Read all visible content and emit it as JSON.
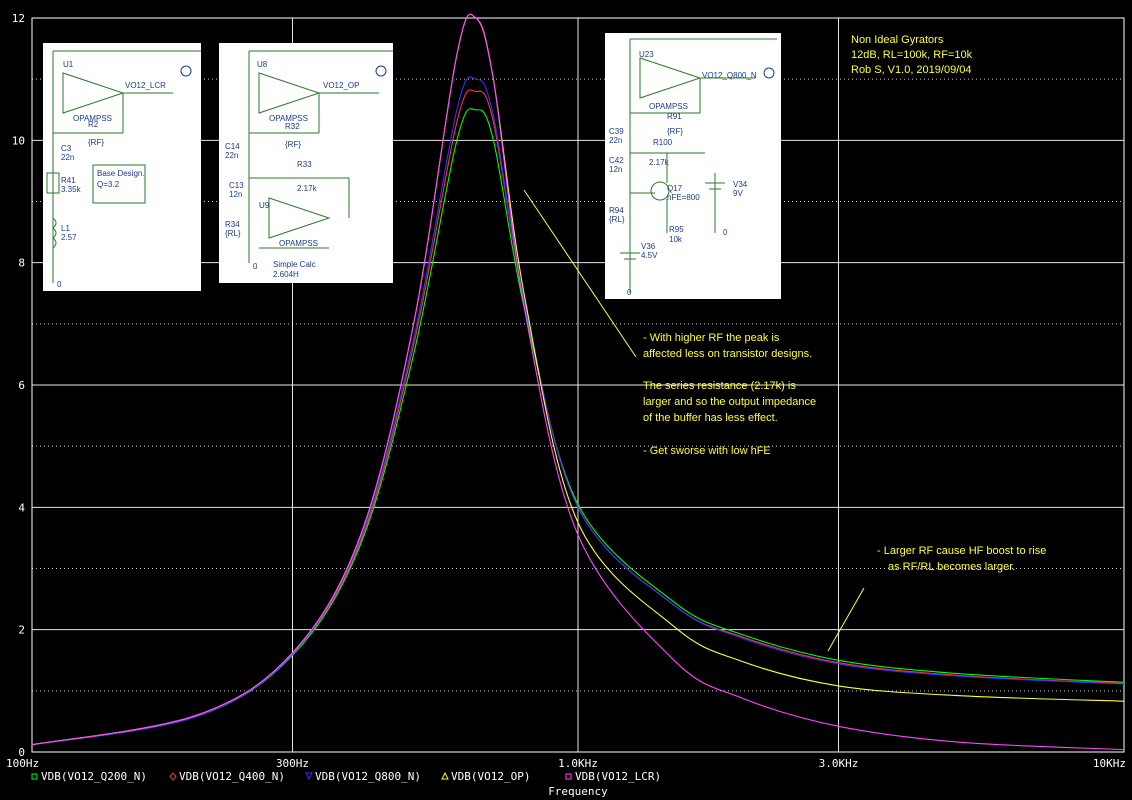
{
  "chart_data": {
    "type": "line",
    "x_scale": "log",
    "xlim": [
      100,
      10000
    ],
    "ylim": [
      0,
      12
    ],
    "grid": true,
    "x_ticks": [
      {
        "v": 100,
        "label": "100Hz"
      },
      {
        "v": 300,
        "label": "300Hz"
      },
      {
        "v": 1000,
        "label": "1.0KHz"
      },
      {
        "v": 3000,
        "label": "3.0KHz"
      },
      {
        "v": 10000,
        "label": "10KHz"
      }
    ],
    "y_ticks": [
      {
        "v": 0,
        "label": "0"
      },
      {
        "v": 2,
        "label": "2"
      },
      {
        "v": 4,
        "label": "4"
      },
      {
        "v": 6,
        "label": "6"
      },
      {
        "v": 8,
        "label": "8"
      },
      {
        "v": 10,
        "label": "10"
      },
      {
        "v": 12,
        "label": "12"
      }
    ],
    "xlabel": "Frequency",
    "x": [
      100,
      200,
      300,
      400,
      500,
      600,
      650,
      700,
      800,
      1000,
      1500,
      2000,
      3000,
      5000,
      10000
    ],
    "series": [
      {
        "name": "VDB(VO12_Q200_N)",
        "color": "#00ff00",
        "values": [
          0.12,
          0.58,
          1.58,
          3.4,
          6.5,
          10.0,
          10.5,
          10.0,
          7.2,
          4.05,
          2.45,
          1.92,
          1.5,
          1.28,
          1.14
        ]
      },
      {
        "name": "VDB(VO12_Q400_N)",
        "color": "#ff3333",
        "values": [
          0.12,
          0.58,
          1.6,
          3.45,
          6.65,
          10.3,
          10.8,
          10.3,
          7.3,
          4.0,
          2.4,
          1.88,
          1.46,
          1.25,
          1.12
        ]
      },
      {
        "name": "VDB(VO12_Q800_N)",
        "color": "#3333ff",
        "values": [
          0.12,
          0.58,
          1.6,
          3.5,
          6.75,
          10.5,
          11.0,
          10.4,
          7.3,
          4.0,
          2.4,
          1.86,
          1.44,
          1.24,
          1.11
        ]
      },
      {
        "name": "VDB(VO12_OP)",
        "color": "#ffff33",
        "values": [
          0.12,
          0.6,
          1.62,
          3.55,
          7.0,
          11.4,
          12.0,
          11.0,
          7.4,
          3.75,
          2.05,
          1.48,
          1.08,
          0.92,
          0.83
        ]
      },
      {
        "name": "VDB(VO12_LCR)",
        "color": "#ff44ff",
        "values": [
          0.12,
          0.6,
          1.62,
          3.55,
          7.0,
          11.4,
          12.0,
          11.0,
          7.2,
          3.55,
          1.5,
          0.88,
          0.42,
          0.16,
          0.04
        ]
      }
    ]
  },
  "header": {
    "title": "Non Ideal Gyrators",
    "line2": "12dB, RL=100k, RF=10k",
    "line3": "Rob S, V1.0, 2019/09/04"
  },
  "annotations": {
    "a1": "- With higher RF the peak is",
    "a2": "affected less on transistor designs.",
    "a3": "The series resistance (2.17k) is",
    "a4": "larger and so the output impedance",
    "a5": "of the buffer has less effect.",
    "a6": "- Get sworse with low hFE",
    "a7": "- Larger RF cause HF boost to rise",
    "a8": "as RF/RL becomes larger."
  },
  "schematics": {
    "s1": {
      "labels": [
        "U1",
        "VO12_LCR",
        "OPAMPSS",
        "R2",
        "{RF}",
        "C3",
        "22n",
        "R41",
        "3.35k",
        "L1",
        "2.57",
        "0"
      ],
      "note1": "Base Design.",
      "note2": "Q=3.2"
    },
    "s2": {
      "labels": [
        "U8",
        "VO12_OP",
        "OPAMPSS",
        "R32",
        "{RF}",
        "C14",
        "22n",
        "R33",
        "2.17k",
        "C13",
        "12n",
        "U9",
        "R34",
        "{RL}",
        "OPAMPSS",
        "0"
      ],
      "note1": "Simple Calc",
      "note2": "2.604H"
    },
    "s3": {
      "labels": [
        "U23",
        "VO12_Q800_N",
        "OPAMPSS",
        "R91",
        "{RF}",
        "C39",
        "22n",
        "R100",
        "C42",
        "2.17k",
        "12n",
        "Q17",
        "hFE=800",
        "V34",
        "9V",
        "R94",
        "{RL}",
        "R95",
        "10k",
        "V36",
        "4.5V",
        "0",
        "0"
      ]
    }
  }
}
